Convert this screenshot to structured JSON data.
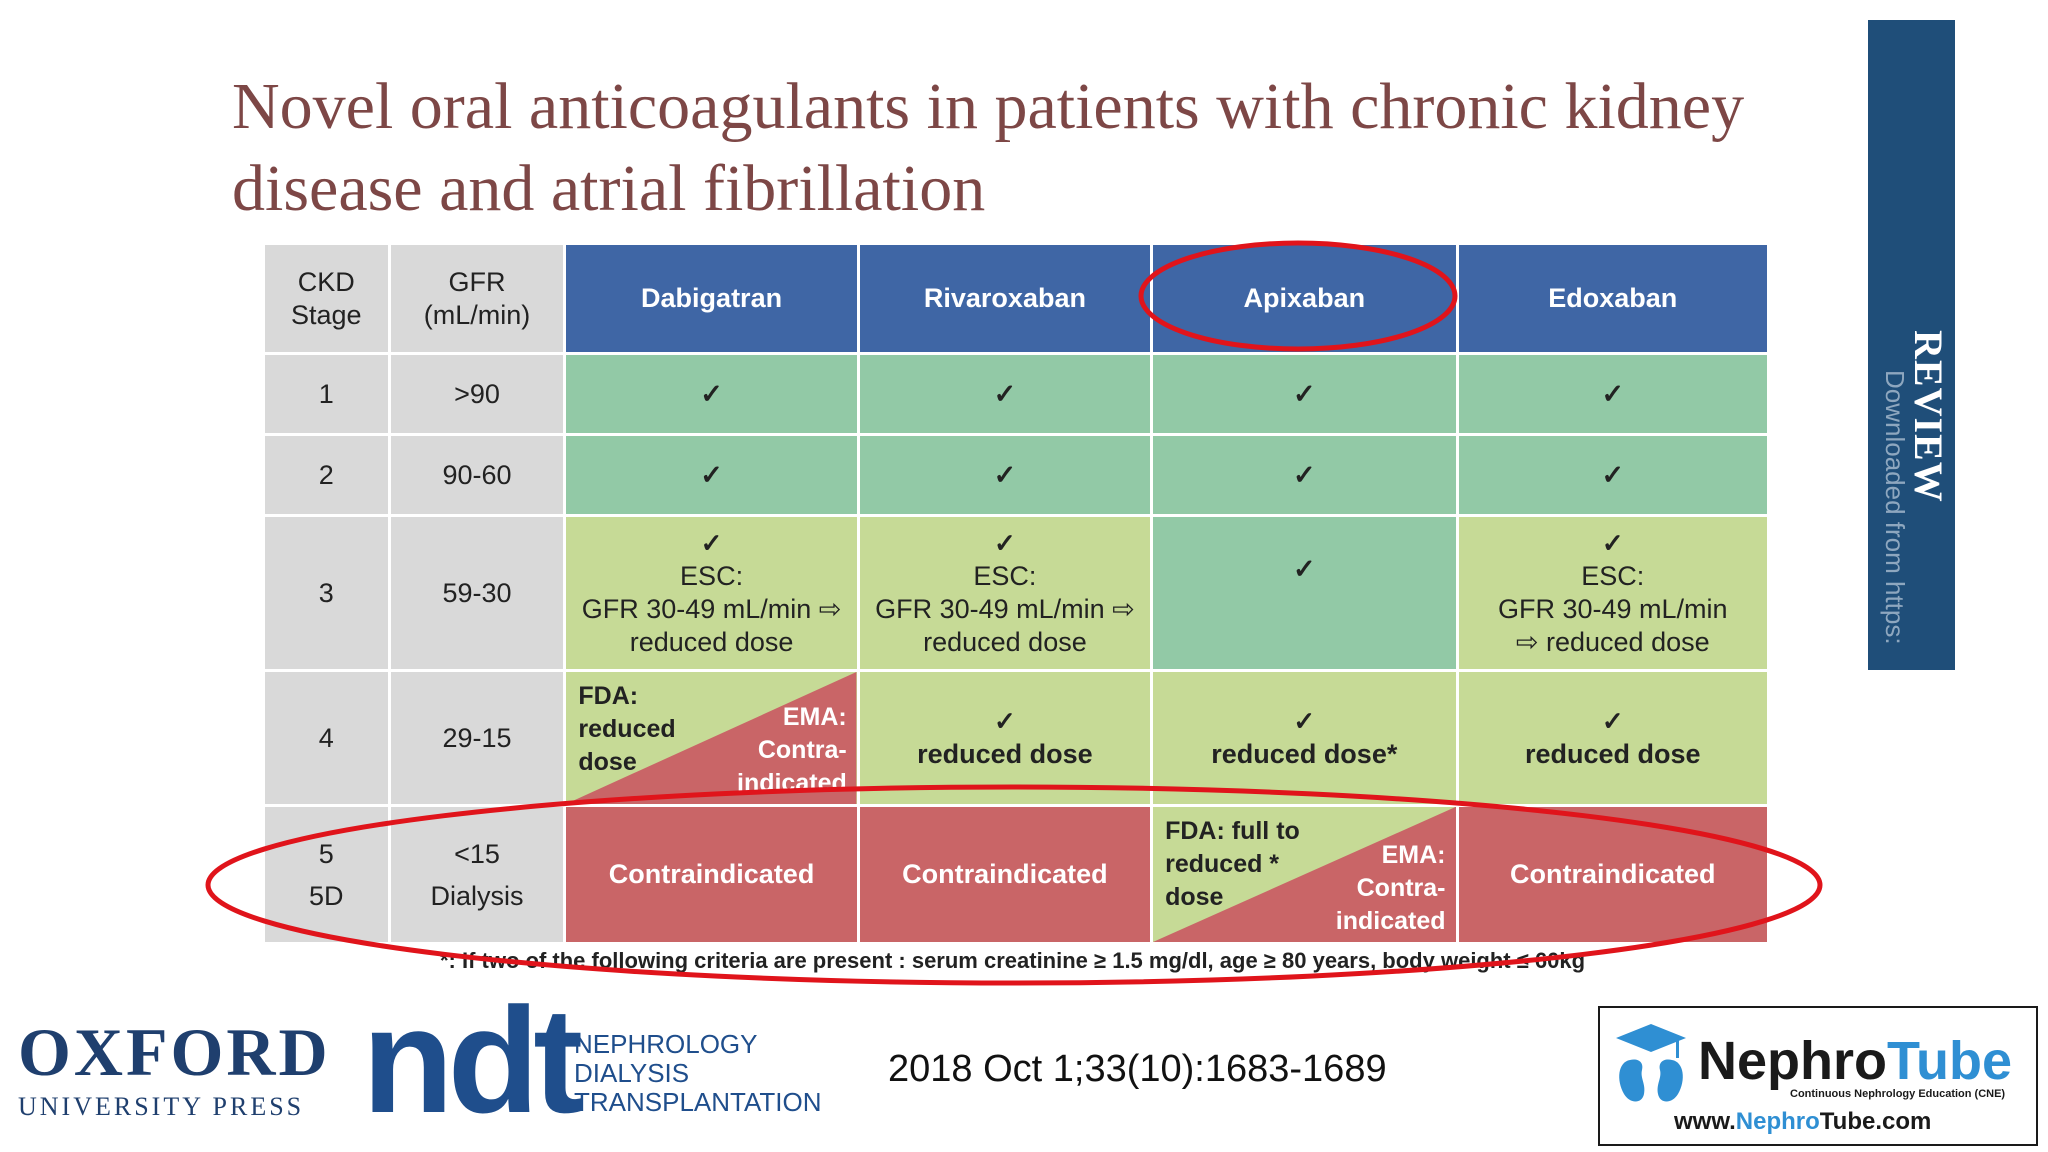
{
  "title": "Novel oral anticoagulants in patients with chronic kidney disease and atrial fibrillation",
  "sidebar": {
    "label": "REVIEW",
    "sub": "Downloaded from https:"
  },
  "table": {
    "headers": {
      "ckd": "CKD Stage",
      "gfr": "GFR (mL/min)",
      "drugs": [
        "Dabigatran",
        "Rivaroxaban",
        "Apixaban",
        "Edoxaban"
      ]
    },
    "rows": [
      {
        "stage": "1",
        "gfr": ">90",
        "cells": [
          "✓",
          "✓",
          "✓",
          "✓"
        ]
      },
      {
        "stage": "2",
        "gfr": "90-60",
        "cells": [
          "✓",
          "✓",
          "✓",
          "✓"
        ]
      },
      {
        "stage": "3",
        "gfr": "59-30",
        "cells": [
          {
            "check": "✓",
            "line1": "ESC:",
            "line2": "GFR 30-49 mL/min ⇨",
            "line3": "reduced dose"
          },
          {
            "check": "✓",
            "line1": "ESC:",
            "line2": "GFR 30-49 mL/min ⇨",
            "line3": "reduced dose"
          },
          {
            "check": "✓"
          },
          {
            "check": "✓",
            "line1": "ESC:",
            "line2": "GFR 30-49 mL/min",
            "line3": "⇨ reduced dose"
          }
        ]
      },
      {
        "stage": "4",
        "gfr": "29-15",
        "cells": [
          {
            "fda": "FDA: reduced dose",
            "ema": "EMA: Contra-indicated"
          },
          {
            "check": "✓",
            "text": "reduced dose"
          },
          {
            "check": "✓",
            "text": "reduced dose*"
          },
          {
            "check": "✓",
            "text": "reduced dose"
          }
        ]
      },
      {
        "stage": "5\n5D",
        "gfr": "<15\nDialysis",
        "cells": [
          "Contraindicated",
          "Contraindicated",
          {
            "fda": "FDA: full to reduced * dose",
            "ema": "EMA: Contra-indicated"
          },
          "Contraindicated"
        ]
      }
    ]
  },
  "footnote": "*: If two of the following criteria are present : serum creatinine ≥ 1.5 mg/dl, age ≥ 80 years, body weight ≤ 60kg",
  "footer": {
    "oxford_big": "OXFORD",
    "oxford_small": "UNIVERSITY PRESS",
    "ndt": "ndt",
    "ndt_sub1": "NEPHROLOGY",
    "ndt_sub2": "DIALYSIS",
    "ndt_sub3": "TRANSPLANTATION",
    "citation": "2018 Oct 1;33(10):1683-1689",
    "nephrotube_a": "Nephro",
    "nephrotube_b": "Tube",
    "nephrotube_tag": "Continuous Nephrology Education (CNE)",
    "url_a": "www.",
    "url_b": "Nephro",
    "url_c": "Tube",
    "url_d": ".com"
  },
  "colors": {
    "header_blue": "#3f66a5",
    "green": "#92c9a6",
    "lime": "#c6da96",
    "red": "#c96567",
    "annotation_red": "#e0141b"
  }
}
